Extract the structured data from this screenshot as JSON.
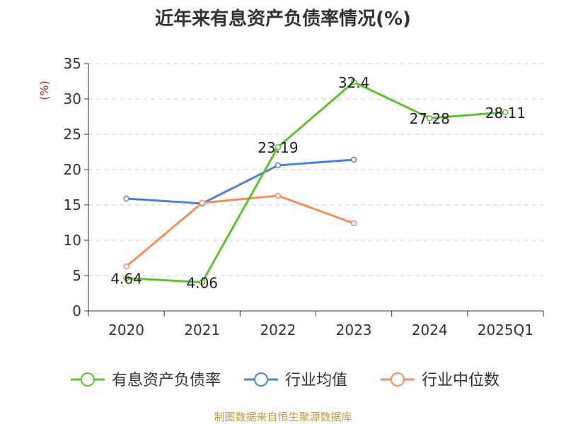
{
  "chart_data": {
    "type": "line",
    "title": "近年来有息资产负债率情况(%)",
    "ylabel": "(%)",
    "categories": [
      "2020",
      "2021",
      "2022",
      "2023",
      "2024",
      "2025Q1"
    ],
    "ylim": [
      0,
      35
    ],
    "yticks": [
      0,
      5,
      10,
      15,
      20,
      25,
      30,
      35
    ],
    "grid": true,
    "legend_position": "bottom",
    "series": [
      {
        "name": "有息资产负债率",
        "color": "#5cc12f",
        "values": [
          4.64,
          4.06,
          23.19,
          32.4,
          27.28,
          28.11
        ],
        "labels": [
          "4.64",
          "4.06",
          "23.19",
          "32.4",
          "27.28",
          "28.11"
        ]
      },
      {
        "name": "行业均值",
        "color": "#4f80d9",
        "values": [
          15.9,
          15.2,
          20.6,
          21.4,
          null,
          null
        ]
      },
      {
        "name": "行业中位数",
        "color": "#f58d5a",
        "values": [
          6.3,
          15.3,
          16.3,
          12.4,
          null,
          null
        ]
      }
    ]
  },
  "footer": {
    "source": "制图数据来自恒生聚源数据库"
  }
}
